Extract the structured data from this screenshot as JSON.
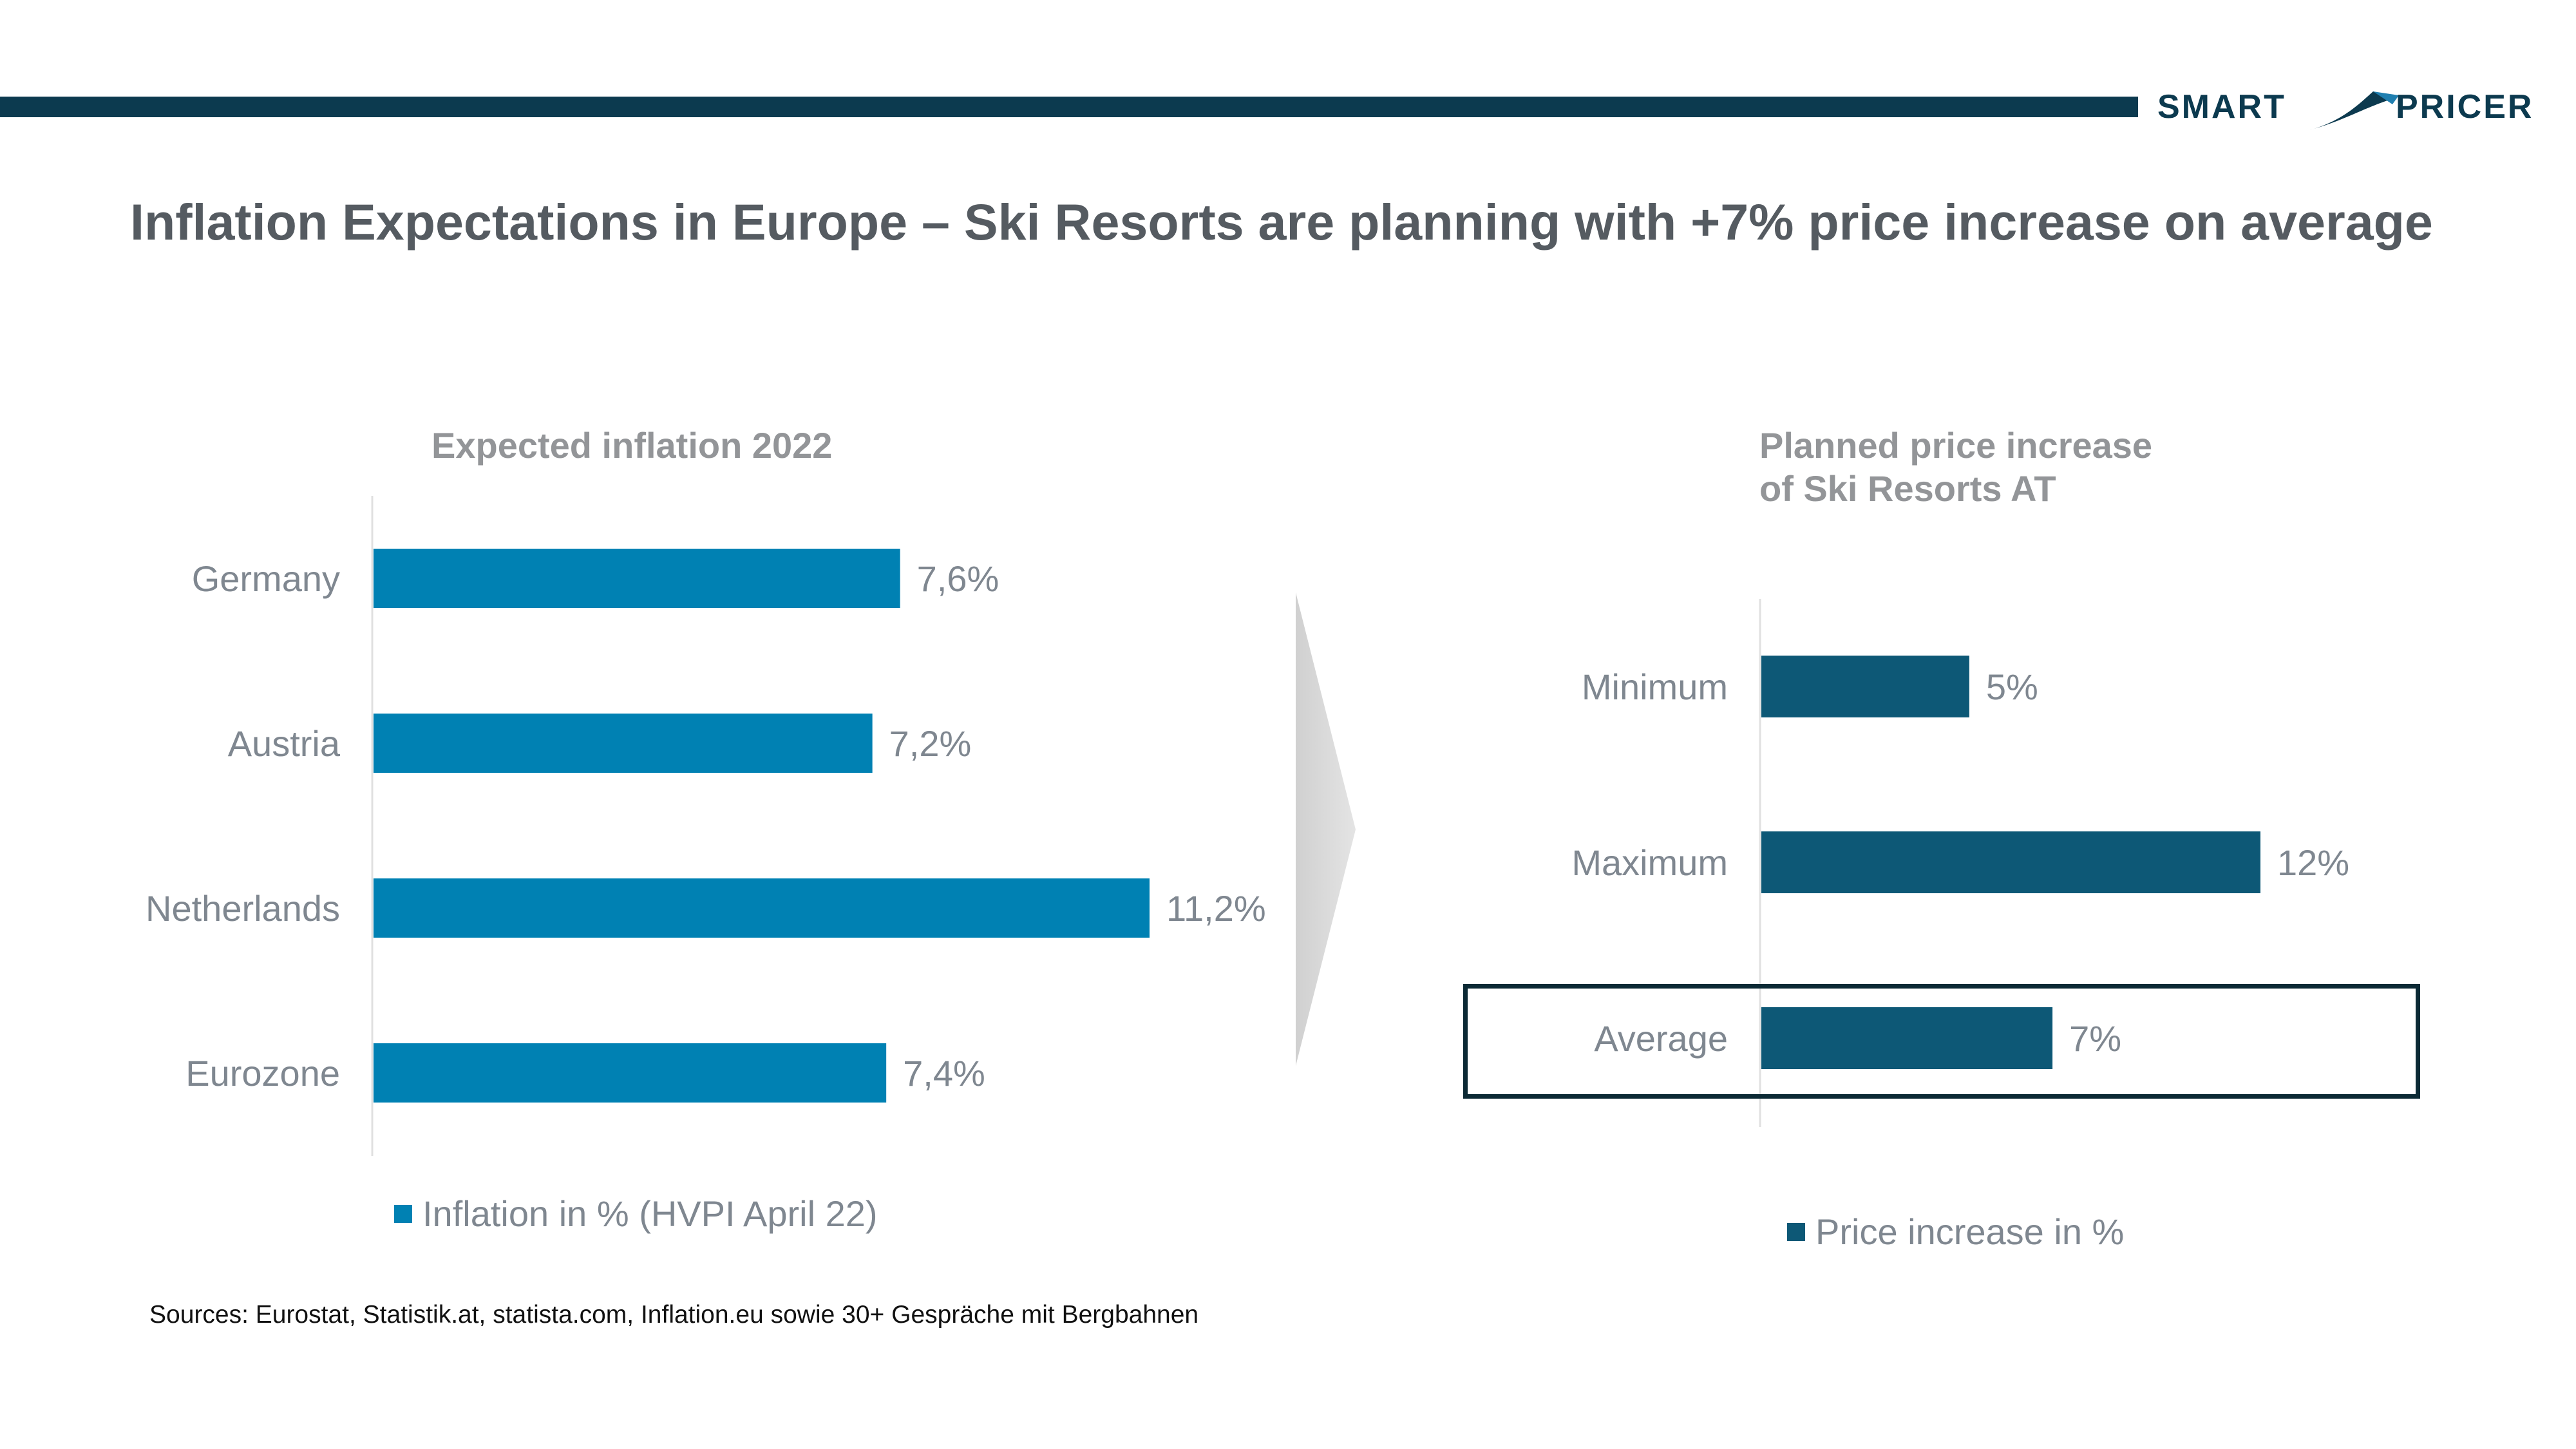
{
  "header": {
    "logo_left": "SMART",
    "logo_right": "PRICER",
    "title": "Inflation Expectations in Europe – Ski Resorts are planning with +7% price increase on average"
  },
  "chart_data": [
    {
      "type": "bar",
      "title": "Expected inflation 2022",
      "categories": [
        "Germany",
        "Austria",
        "Netherlands",
        "Eurozone"
      ],
      "series": [
        {
          "name": "Inflation in % (HVPI April 22)",
          "values": [
            7.6,
            7.2,
            11.2,
            7.4
          ],
          "labels": [
            "7,6%",
            "7,2%",
            "11,2%",
            "7,4%"
          ]
        }
      ],
      "orientation": "horizontal",
      "xlim": [
        0,
        14
      ],
      "grid": false,
      "legend": "bottom",
      "color": "#0081b3"
    },
    {
      "type": "bar",
      "title_lines": [
        "Planned price increase",
        "of Ski Resorts AT"
      ],
      "categories": [
        "Minimum",
        "Maximum",
        "Average"
      ],
      "series": [
        {
          "name": "Price increase in %",
          "values": [
            5,
            12,
            7
          ],
          "labels": [
            "5%",
            "12%",
            "7%"
          ]
        }
      ],
      "orientation": "horizontal",
      "xlim": [
        0,
        15
      ],
      "grid": false,
      "legend": "bottom",
      "highlight": "Average",
      "color": "#0d5876"
    }
  ],
  "footer": {
    "source": "Sources: Eurostat, Statistik.at, statista.com, Inflation.eu sowie 30+ Gespräche mit Bergbahnen"
  }
}
